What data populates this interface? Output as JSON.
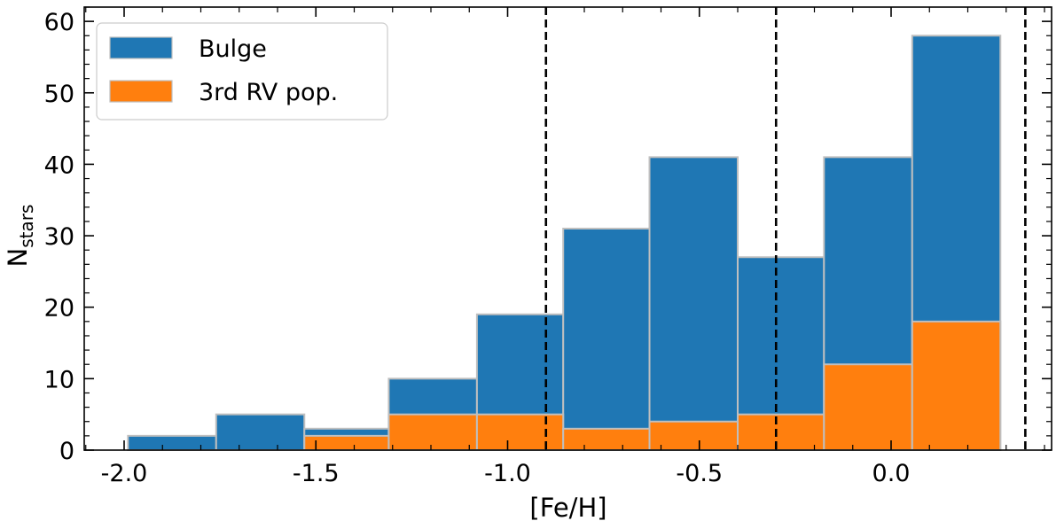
{
  "chart_data": {
    "type": "bar",
    "xlabel": "[Fe/H]",
    "ylabel": "N",
    "ylabel_sub": "stars",
    "xlim": [
      -2.1,
      0.4
    ],
    "ylim": [
      0,
      62
    ],
    "xticks": [
      -2.0,
      -1.5,
      -1.0,
      -0.5,
      0.0
    ],
    "xtick_labels": [
      "-2.0",
      "-1.5",
      "-1.0",
      "-0.5",
      "0.0"
    ],
    "yticks": [
      0,
      10,
      20,
      30,
      40,
      50,
      60
    ],
    "ytick_labels": [
      "0",
      "10",
      "20",
      "30",
      "40",
      "50",
      "60"
    ],
    "bin_edges": [
      -1.99,
      -1.76,
      -1.53,
      -1.31,
      -1.08,
      -0.855,
      -0.63,
      -0.4,
      -0.175,
      0.055,
      0.285
    ],
    "series": [
      {
        "name": "Bulge",
        "color": "#1f77b4",
        "values": [
          2,
          5,
          3,
          10,
          19,
          31,
          41,
          27,
          41,
          58
        ]
      },
      {
        "name": "3rd RV pop.",
        "color": "#ff7f0e",
        "values": [
          0,
          0,
          2,
          5,
          5,
          3,
          4,
          5,
          12,
          18
        ]
      }
    ],
    "vlines": [
      -0.9,
      -0.3,
      0.35
    ],
    "legend_position": "top-left",
    "grid": false
  }
}
